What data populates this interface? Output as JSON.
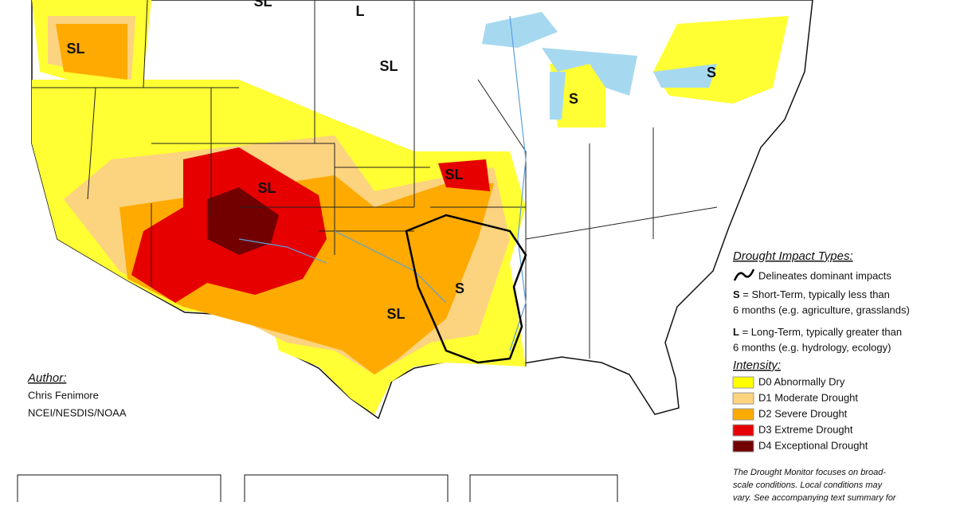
{
  "map_labels": [
    {
      "text": "SL"
    },
    {
      "text": "L"
    },
    {
      "text": "SL"
    },
    {
      "text": "SL"
    },
    {
      "text": "S"
    },
    {
      "text": "S"
    },
    {
      "text": "SL"
    },
    {
      "text": "SL"
    },
    {
      "text": "S"
    },
    {
      "text": "SL"
    }
  ],
  "author": {
    "title": "Author:",
    "lines": [
      "Chris Fenimore",
      "NCEI/NESDIS/NOAA"
    ]
  },
  "legend": {
    "impact_title": "Drought Impact Types:",
    "impact_line": "Delineates dominant impacts",
    "impact_types": [
      {
        "key": "S",
        "lines": [
          " = Short-Term, typically less than",
          "6 months (e.g. agriculture, grasslands)"
        ]
      },
      {
        "key": "L",
        "lines": [
          " = Long-Term, typically greater than",
          "6 months (e.g. hydrology, ecology)"
        ]
      }
    ],
    "intensity_title": "Intensity:",
    "intensity": [
      {
        "label": "D0 Abnormally Dry",
        "color": "#ffff00"
      },
      {
        "label": "D1 Moderate Drought",
        "color": "#fcd37f"
      },
      {
        "label": "D2 Severe Drought",
        "color": "#ffaa00"
      },
      {
        "label": "D3 Extreme Drought",
        "color": "#e60000"
      },
      {
        "label": "D4 Exceptional Drought",
        "color": "#730000"
      }
    ]
  },
  "note": {
    "lines": [
      "The Drought Monitor focuses on broad-",
      "scale conditions. Local conditions may",
      "vary. See accompanying text summary for"
    ]
  }
}
